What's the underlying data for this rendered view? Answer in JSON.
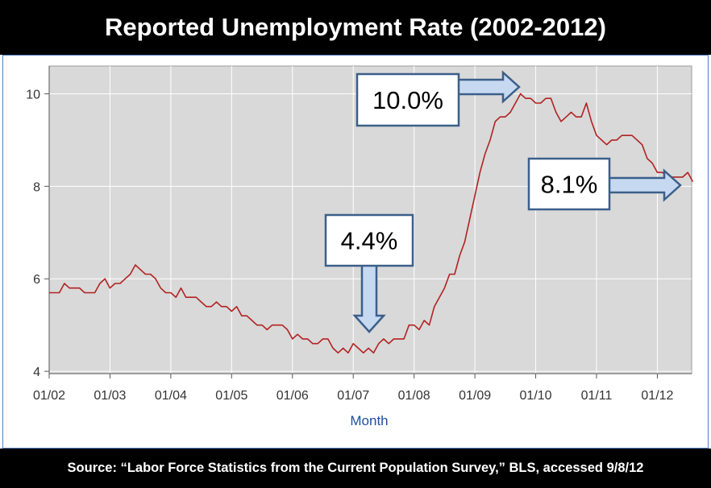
{
  "header": {
    "title": "Reported Unemployment Rate (2002-2012)"
  },
  "footer": {
    "source": "Source: “Labor Force Statistics from the Current Population Survey,” BLS,  accessed 9/8/12"
  },
  "chart_data": {
    "type": "line",
    "title": "Reported Unemployment Rate (2002-2012)",
    "xlabel": "Month",
    "ylabel": "",
    "x_ticks": [
      "01/02",
      "01/03",
      "01/04",
      "01/05",
      "01/06",
      "01/07",
      "01/08",
      "01/09",
      "01/10",
      "01/11",
      "01/12"
    ],
    "y_ticks": [
      4,
      6,
      8,
      10
    ],
    "ylim": [
      3.95,
      10.6
    ],
    "xlim": [
      "01/02",
      "08/12"
    ],
    "grid": true,
    "series_color": "#b22222",
    "plot_background": "#d9d9d9",
    "series": [
      {
        "x_start": "01/02",
        "frequency": "monthly",
        "values": [
          5.7,
          5.7,
          5.7,
          5.9,
          5.8,
          5.8,
          5.8,
          5.7,
          5.7,
          5.7,
          5.9,
          6.0,
          5.8,
          5.9,
          5.9,
          6.0,
          6.1,
          6.3,
          6.2,
          6.1,
          6.1,
          6.0,
          5.8,
          5.7,
          5.7,
          5.6,
          5.8,
          5.6,
          5.6,
          5.6,
          5.5,
          5.4,
          5.4,
          5.5,
          5.4,
          5.4,
          5.3,
          5.4,
          5.2,
          5.2,
          5.1,
          5.0,
          5.0,
          4.9,
          5.0,
          5.0,
          5.0,
          4.9,
          4.7,
          4.8,
          4.7,
          4.7,
          4.6,
          4.6,
          4.7,
          4.7,
          4.5,
          4.4,
          4.5,
          4.4,
          4.6,
          4.5,
          4.4,
          4.5,
          4.4,
          4.6,
          4.7,
          4.6,
          4.7,
          4.7,
          4.7,
          5.0,
          5.0,
          4.9,
          5.1,
          5.0,
          5.4,
          5.6,
          5.8,
          6.1,
          6.1,
          6.5,
          6.8,
          7.3,
          7.8,
          8.3,
          8.7,
          9.0,
          9.4,
          9.5,
          9.5,
          9.6,
          9.8,
          10.0,
          9.9,
          9.9,
          9.8,
          9.8,
          9.9,
          9.9,
          9.6,
          9.4,
          9.5,
          9.6,
          9.5,
          9.5,
          9.8,
          9.4,
          9.1,
          9.0,
          8.9,
          9.0,
          9.0,
          9.1,
          9.1,
          9.1,
          9.0,
          8.9,
          8.6,
          8.5,
          8.3,
          8.3,
          8.2,
          8.2,
          8.2,
          8.2,
          8.3,
          8.1
        ]
      }
    ],
    "annotations": [
      {
        "label": "10.0%",
        "month": "10/09",
        "value": 10.0,
        "arrow": "right"
      },
      {
        "label": "4.4%",
        "month": "03/07",
        "value": 4.4,
        "arrow": "down"
      },
      {
        "label": "8.1%",
        "month": "08/12",
        "value": 8.1,
        "arrow": "right"
      }
    ]
  }
}
